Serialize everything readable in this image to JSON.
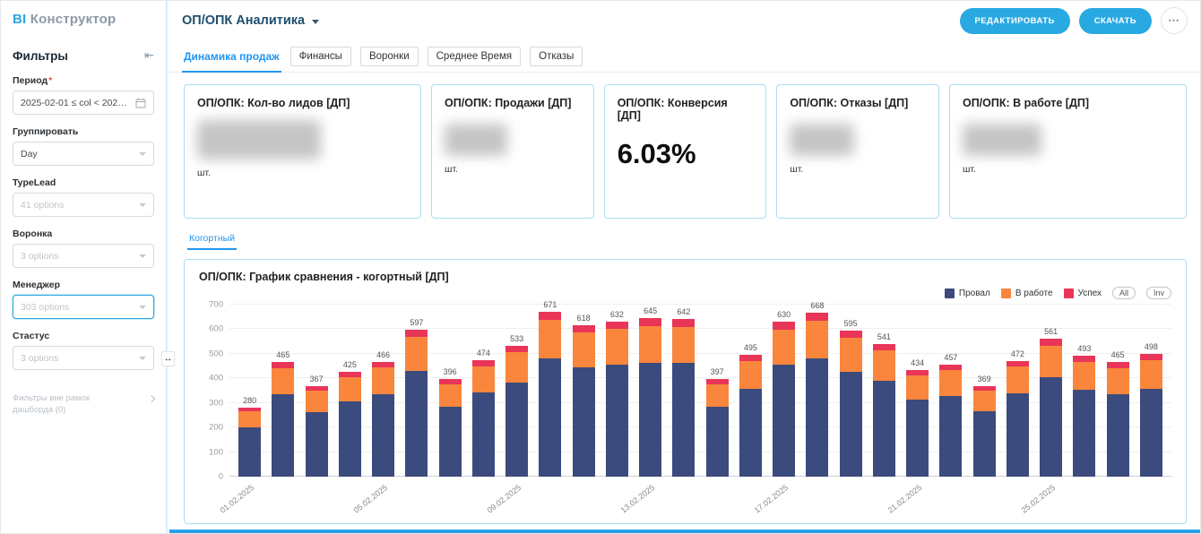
{
  "logo": {
    "bi": "BI",
    "name": "Конструктор"
  },
  "header": {
    "title": "ОП/ОПК Аналитика",
    "edit_button": "РЕДАКТИРОВАТЬ",
    "download_button": "СКАЧАТЬ",
    "more_button": "•••"
  },
  "sidebar": {
    "title": "Фильтры",
    "required_mark": "*",
    "filters": [
      {
        "label": "Период",
        "required": true,
        "value": "2025-02-01 ≤ col < 2025...",
        "control": "date-range"
      },
      {
        "label": "Группировать",
        "value": "Day",
        "control": "select"
      },
      {
        "label": "TypeLead",
        "placeholder": "41 options",
        "control": "multiselect"
      },
      {
        "label": "Воронка",
        "placeholder": "3 options",
        "control": "multiselect"
      },
      {
        "label": "Менеджер",
        "placeholder": "303 options",
        "control": "multiselect",
        "focused": true
      },
      {
        "label": "Стастус",
        "placeholder": "3 options",
        "control": "multiselect"
      }
    ],
    "outer_filters_label": "Фильтры вне рамок дашборда (0)"
  },
  "tabs": [
    {
      "label": "Динамика продаж",
      "active": true
    },
    {
      "label": "Финансы",
      "active": false
    },
    {
      "label": "Воронки",
      "active": false
    },
    {
      "label": "Среднее Время",
      "active": false
    },
    {
      "label": "Отказы",
      "active": false
    }
  ],
  "kpi_cards": [
    {
      "title": "ОП/ОПК: Кол-во лидов [ДП]",
      "value_hidden": true,
      "unit": "шт."
    },
    {
      "title": "ОП/ОПК: Продажи [ДП]",
      "value_hidden": true,
      "unit": "шт."
    },
    {
      "title": "ОП/ОПК: Конверсия [ДП]",
      "value": "6.03%",
      "value_hidden": false,
      "unit": ""
    },
    {
      "title": "ОП/ОПК: Отказы [ДП]",
      "value_hidden": true,
      "unit": "шт."
    },
    {
      "title": "ОП/ОПК: В работе [ДП]",
      "value_hidden": true,
      "unit": "шт."
    }
  ],
  "chart_section": {
    "tab": "Когортный",
    "legend_buttons": [
      "All",
      "Inv"
    ]
  },
  "chart_data": {
    "type": "bar",
    "stacked": true,
    "title": "ОП/ОПК: График сравнения - когортный [ДП]",
    "categories": [
      "01.02.2025",
      "02.02.2025",
      "03.02.2025",
      "04.02.2025",
      "05.02.2025",
      "06.02.2025",
      "07.02.2025",
      "08.02.2025",
      "09.02.2025",
      "10.02.2025",
      "11.02.2025",
      "12.02.2025",
      "13.02.2025",
      "14.02.2025",
      "15.02.2025",
      "16.02.2025",
      "17.02.2025",
      "18.02.2025",
      "19.02.2025",
      "20.02.2025",
      "21.02.2025",
      "22.02.2025",
      "23.02.2025",
      "24.02.2025",
      "25.02.2025",
      "26.02.2025",
      "27.02.2025",
      "28.02.2025"
    ],
    "x_tick_every": 4,
    "totals": [
      280,
      465,
      367,
      425,
      466,
      597,
      396,
      474,
      533,
      671,
      618,
      632,
      645,
      642,
      397,
      495,
      630,
      668,
      595,
      541,
      434,
      457,
      369,
      472,
      561,
      493,
      465,
      498
    ],
    "series": [
      {
        "name": "Провал",
        "color": "#3c4b7d",
        "values": [
          202,
          335,
          264,
          306,
          336,
          430,
          285,
          341,
          384,
          483,
          445,
          455,
          464,
          462,
          286,
          356,
          454,
          481,
          428,
          390,
          312,
          329,
          266,
          340,
          404,
          355,
          335,
          359
        ]
      },
      {
        "name": "В работе",
        "color": "#f9863c",
        "values": [
          64,
          107,
          85,
          98,
          107,
          137,
          91,
          109,
          122,
          154,
          142,
          145,
          149,
          148,
          91,
          114,
          144,
          154,
          137,
          124,
          100,
          105,
          85,
          108,
          129,
          113,
          107,
          114
        ]
      },
      {
        "name": "Успех",
        "color": "#e93558",
        "values": [
          14,
          23,
          18,
          21,
          23,
          30,
          20,
          24,
          27,
          34,
          31,
          32,
          32,
          32,
          20,
          25,
          32,
          33,
          30,
          27,
          22,
          23,
          18,
          24,
          28,
          25,
          23,
          25
        ]
      }
    ],
    "ylim": [
      0,
      700
    ],
    "y_tick_step": 100,
    "grid": true,
    "legend_position": "top-right"
  },
  "colors": {
    "accent": "#29a9e1",
    "active_tab": "#2196f3",
    "card_border": "#abddf5",
    "scrollbar": "#2b9fe8"
  }
}
